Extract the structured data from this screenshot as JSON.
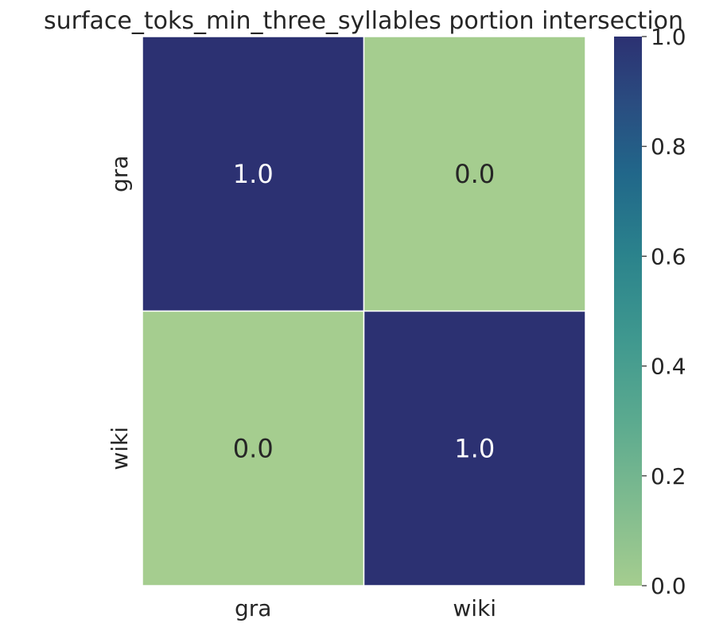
{
  "chart_data": {
    "type": "heatmap",
    "title": "surface_toks_min_three_syllables portion intersection",
    "xlabel": "",
    "ylabel": "",
    "x_categories": [
      "gra",
      "wiki"
    ],
    "y_categories": [
      "gra",
      "wiki"
    ],
    "values": [
      [
        1.0,
        0.0
      ],
      [
        0.0,
        1.0
      ]
    ],
    "cell_labels": [
      [
        "1.0",
        "0.0"
      ],
      [
        "0.0",
        "1.0"
      ]
    ],
    "colorbar": {
      "range": [
        0.0,
        1.0
      ],
      "ticks": [
        0.0,
        0.2,
        0.4,
        0.6,
        0.8,
        1.0
      ],
      "tick_labels": [
        "0.0",
        "0.2",
        "0.4",
        "0.6",
        "0.8",
        "1.0"
      ],
      "colormap": "crest",
      "low_color": "#a5cd8f",
      "high_color": "#2c3172"
    },
    "grid": false,
    "legend": "colorbar-right"
  }
}
